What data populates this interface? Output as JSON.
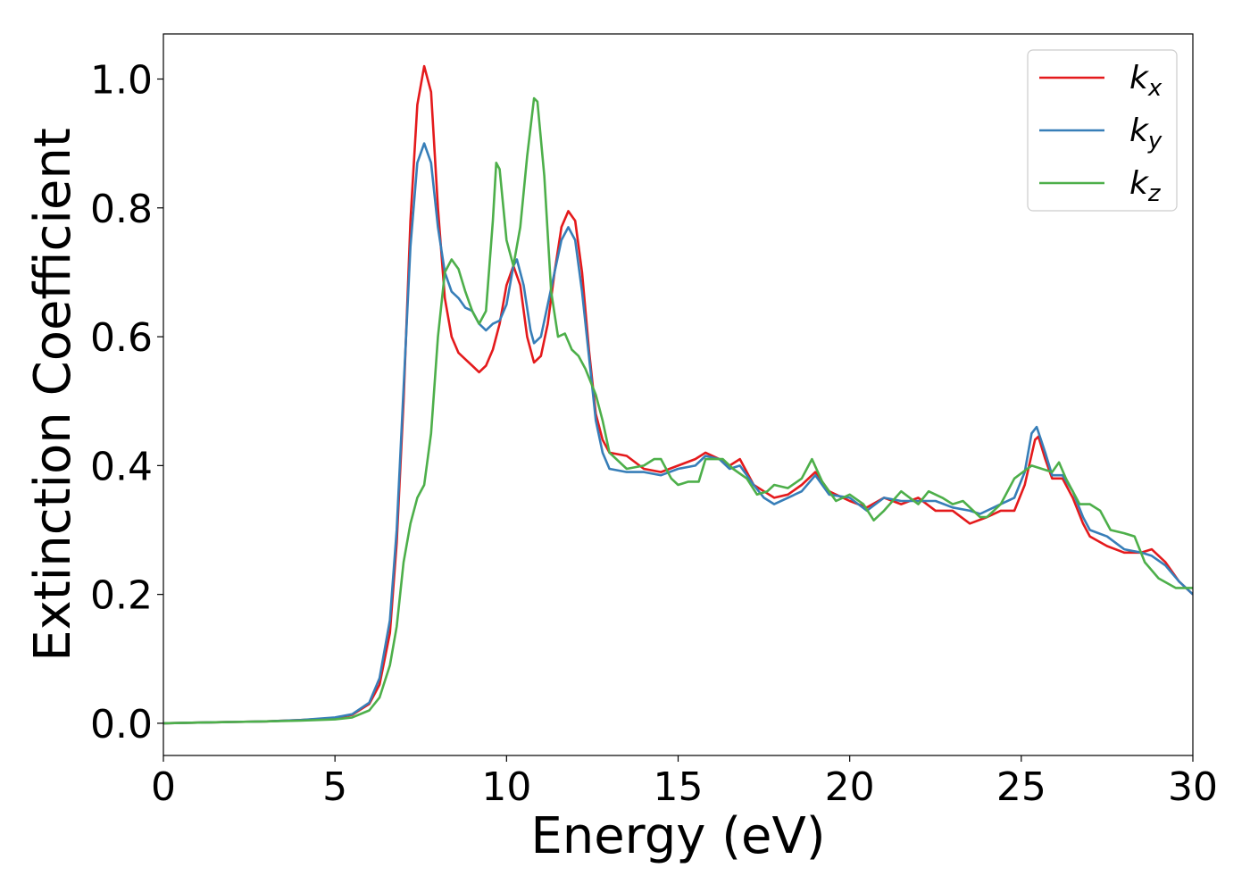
{
  "chart_data": {
    "type": "line",
    "title": "",
    "xlabel": "Energy (eV)",
    "ylabel": "Extinction Coefficient",
    "xlim": [
      0,
      30
    ],
    "ylim": [
      -0.05,
      1.07
    ],
    "xticks": [
      0,
      5,
      10,
      15,
      20,
      25,
      30
    ],
    "xtick_labels": [
      "0",
      "5",
      "10",
      "15",
      "20",
      "25",
      "30"
    ],
    "yticks": [
      0.0,
      0.2,
      0.4,
      0.6,
      0.8,
      1.0
    ],
    "ytick_labels": [
      "0.0",
      "0.2",
      "0.4",
      "0.6",
      "0.8",
      "1.0"
    ],
    "grid": false,
    "legend_position": "top-right",
    "series": [
      {
        "name": "kx",
        "name_base": "k",
        "name_sub": "x",
        "color": "#e41a1c",
        "points": [
          [
            0,
            0.0
          ],
          [
            1,
            0.001
          ],
          [
            2,
            0.002
          ],
          [
            3,
            0.003
          ],
          [
            4,
            0.005
          ],
          [
            5,
            0.008
          ],
          [
            5.5,
            0.013
          ],
          [
            6,
            0.03
          ],
          [
            6.3,
            0.06
          ],
          [
            6.6,
            0.14
          ],
          [
            6.8,
            0.28
          ],
          [
            7.0,
            0.5
          ],
          [
            7.2,
            0.78
          ],
          [
            7.4,
            0.96
          ],
          [
            7.6,
            1.02
          ],
          [
            7.8,
            0.98
          ],
          [
            8.0,
            0.8
          ],
          [
            8.2,
            0.66
          ],
          [
            8.4,
            0.6
          ],
          [
            8.6,
            0.575
          ],
          [
            8.8,
            0.565
          ],
          [
            9.0,
            0.555
          ],
          [
            9.2,
            0.545
          ],
          [
            9.4,
            0.555
          ],
          [
            9.6,
            0.58
          ],
          [
            9.8,
            0.62
          ],
          [
            10.0,
            0.68
          ],
          [
            10.2,
            0.71
          ],
          [
            10.4,
            0.68
          ],
          [
            10.6,
            0.6
          ],
          [
            10.8,
            0.56
          ],
          [
            11.0,
            0.57
          ],
          [
            11.2,
            0.62
          ],
          [
            11.4,
            0.7
          ],
          [
            11.6,
            0.77
          ],
          [
            11.8,
            0.795
          ],
          [
            12.0,
            0.78
          ],
          [
            12.2,
            0.7
          ],
          [
            12.4,
            0.58
          ],
          [
            12.6,
            0.48
          ],
          [
            12.8,
            0.44
          ],
          [
            13.0,
            0.42
          ],
          [
            13.5,
            0.415
          ],
          [
            14.0,
            0.395
          ],
          [
            14.5,
            0.39
          ],
          [
            15.0,
            0.4
          ],
          [
            15.5,
            0.41
          ],
          [
            15.8,
            0.42
          ],
          [
            16.2,
            0.41
          ],
          [
            16.5,
            0.4
          ],
          [
            16.8,
            0.41
          ],
          [
            17.2,
            0.37
          ],
          [
            17.5,
            0.36
          ],
          [
            17.8,
            0.35
          ],
          [
            18.2,
            0.355
          ],
          [
            18.6,
            0.37
          ],
          [
            19.0,
            0.39
          ],
          [
            19.4,
            0.36
          ],
          [
            20.0,
            0.345
          ],
          [
            20.5,
            0.335
          ],
          [
            21.0,
            0.35
          ],
          [
            21.5,
            0.34
          ],
          [
            22.0,
            0.35
          ],
          [
            22.5,
            0.33
          ],
          [
            23.0,
            0.33
          ],
          [
            23.5,
            0.31
          ],
          [
            24.0,
            0.32
          ],
          [
            24.4,
            0.33
          ],
          [
            24.8,
            0.33
          ],
          [
            25.1,
            0.37
          ],
          [
            25.4,
            0.44
          ],
          [
            25.5,
            0.445
          ],
          [
            25.7,
            0.41
          ],
          [
            25.9,
            0.38
          ],
          [
            26.2,
            0.38
          ],
          [
            26.5,
            0.35
          ],
          [
            26.8,
            0.31
          ],
          [
            27.0,
            0.29
          ],
          [
            27.5,
            0.275
          ],
          [
            28.0,
            0.265
          ],
          [
            28.5,
            0.265
          ],
          [
            28.8,
            0.27
          ],
          [
            29.2,
            0.25
          ],
          [
            29.6,
            0.22
          ],
          [
            30.0,
            0.2
          ]
        ]
      },
      {
        "name": "ky",
        "name_base": "k",
        "name_sub": "y",
        "color": "#377eb8",
        "points": [
          [
            0,
            0.0
          ],
          [
            1,
            0.001
          ],
          [
            2,
            0.002
          ],
          [
            3,
            0.003
          ],
          [
            4,
            0.005
          ],
          [
            5,
            0.009
          ],
          [
            5.5,
            0.014
          ],
          [
            6,
            0.032
          ],
          [
            6.3,
            0.07
          ],
          [
            6.6,
            0.16
          ],
          [
            6.8,
            0.3
          ],
          [
            7.0,
            0.52
          ],
          [
            7.2,
            0.74
          ],
          [
            7.4,
            0.87
          ],
          [
            7.6,
            0.9
          ],
          [
            7.8,
            0.87
          ],
          [
            8.0,
            0.77
          ],
          [
            8.2,
            0.7
          ],
          [
            8.4,
            0.67
          ],
          [
            8.6,
            0.66
          ],
          [
            8.8,
            0.645
          ],
          [
            9.0,
            0.64
          ],
          [
            9.2,
            0.62
          ],
          [
            9.4,
            0.61
          ],
          [
            9.6,
            0.62
          ],
          [
            9.8,
            0.625
          ],
          [
            10.0,
            0.65
          ],
          [
            10.2,
            0.71
          ],
          [
            10.3,
            0.72
          ],
          [
            10.5,
            0.68
          ],
          [
            10.7,
            0.61
          ],
          [
            10.8,
            0.59
          ],
          [
            11.0,
            0.6
          ],
          [
            11.2,
            0.65
          ],
          [
            11.4,
            0.7
          ],
          [
            11.6,
            0.75
          ],
          [
            11.8,
            0.77
          ],
          [
            12.0,
            0.75
          ],
          [
            12.2,
            0.67
          ],
          [
            12.4,
            0.57
          ],
          [
            12.6,
            0.47
          ],
          [
            12.8,
            0.42
          ],
          [
            13.0,
            0.395
          ],
          [
            13.5,
            0.39
          ],
          [
            14.0,
            0.39
          ],
          [
            14.5,
            0.385
          ],
          [
            15.0,
            0.395
          ],
          [
            15.5,
            0.4
          ],
          [
            15.8,
            0.415
          ],
          [
            16.2,
            0.41
          ],
          [
            16.5,
            0.395
          ],
          [
            16.8,
            0.4
          ],
          [
            17.2,
            0.37
          ],
          [
            17.5,
            0.35
          ],
          [
            17.8,
            0.34
          ],
          [
            18.2,
            0.35
          ],
          [
            18.6,
            0.36
          ],
          [
            19.0,
            0.385
          ],
          [
            19.4,
            0.355
          ],
          [
            20.0,
            0.35
          ],
          [
            20.5,
            0.33
          ],
          [
            21.0,
            0.35
          ],
          [
            21.5,
            0.345
          ],
          [
            22.0,
            0.345
          ],
          [
            22.5,
            0.345
          ],
          [
            23.0,
            0.335
          ],
          [
            23.5,
            0.33
          ],
          [
            23.8,
            0.325
          ],
          [
            24.4,
            0.34
          ],
          [
            24.8,
            0.35
          ],
          [
            25.1,
            0.39
          ],
          [
            25.3,
            0.45
          ],
          [
            25.45,
            0.46
          ],
          [
            25.7,
            0.42
          ],
          [
            25.9,
            0.385
          ],
          [
            26.2,
            0.385
          ],
          [
            26.5,
            0.36
          ],
          [
            26.8,
            0.32
          ],
          [
            27.0,
            0.3
          ],
          [
            27.5,
            0.29
          ],
          [
            28.0,
            0.27
          ],
          [
            28.5,
            0.265
          ],
          [
            28.8,
            0.26
          ],
          [
            29.2,
            0.245
          ],
          [
            29.6,
            0.22
          ],
          [
            30.0,
            0.2
          ]
        ]
      },
      {
        "name": "kz",
        "name_base": "k",
        "name_sub": "z",
        "color": "#4daf4a",
        "points": [
          [
            0,
            0.0
          ],
          [
            1,
            0.001
          ],
          [
            2,
            0.002
          ],
          [
            3,
            0.003
          ],
          [
            4,
            0.004
          ],
          [
            5,
            0.006
          ],
          [
            5.5,
            0.009
          ],
          [
            6,
            0.02
          ],
          [
            6.3,
            0.04
          ],
          [
            6.6,
            0.09
          ],
          [
            6.8,
            0.15
          ],
          [
            7.0,
            0.25
          ],
          [
            7.2,
            0.31
          ],
          [
            7.4,
            0.35
          ],
          [
            7.6,
            0.37
          ],
          [
            7.8,
            0.45
          ],
          [
            8.0,
            0.6
          ],
          [
            8.2,
            0.7
          ],
          [
            8.4,
            0.72
          ],
          [
            8.6,
            0.705
          ],
          [
            8.8,
            0.67
          ],
          [
            9.0,
            0.64
          ],
          [
            9.2,
            0.62
          ],
          [
            9.4,
            0.64
          ],
          [
            9.6,
            0.78
          ],
          [
            9.7,
            0.87
          ],
          [
            9.8,
            0.86
          ],
          [
            10.0,
            0.75
          ],
          [
            10.2,
            0.71
          ],
          [
            10.4,
            0.77
          ],
          [
            10.6,
            0.88
          ],
          [
            10.8,
            0.97
          ],
          [
            10.9,
            0.965
          ],
          [
            11.1,
            0.85
          ],
          [
            11.3,
            0.67
          ],
          [
            11.5,
            0.6
          ],
          [
            11.7,
            0.605
          ],
          [
            11.9,
            0.58
          ],
          [
            12.1,
            0.57
          ],
          [
            12.3,
            0.55
          ],
          [
            12.6,
            0.51
          ],
          [
            12.8,
            0.47
          ],
          [
            13.0,
            0.42
          ],
          [
            13.5,
            0.395
          ],
          [
            14.0,
            0.4
          ],
          [
            14.3,
            0.41
          ],
          [
            14.5,
            0.41
          ],
          [
            14.8,
            0.38
          ],
          [
            15.0,
            0.37
          ],
          [
            15.3,
            0.375
          ],
          [
            15.6,
            0.375
          ],
          [
            15.8,
            0.41
          ],
          [
            16.0,
            0.41
          ],
          [
            16.3,
            0.41
          ],
          [
            16.6,
            0.395
          ],
          [
            17.0,
            0.38
          ],
          [
            17.3,
            0.355
          ],
          [
            17.6,
            0.36
          ],
          [
            17.8,
            0.37
          ],
          [
            18.2,
            0.365
          ],
          [
            18.6,
            0.38
          ],
          [
            18.9,
            0.41
          ],
          [
            19.2,
            0.375
          ],
          [
            19.6,
            0.345
          ],
          [
            20.0,
            0.355
          ],
          [
            20.4,
            0.34
          ],
          [
            20.7,
            0.315
          ],
          [
            21.0,
            0.33
          ],
          [
            21.5,
            0.36
          ],
          [
            22.0,
            0.34
          ],
          [
            22.3,
            0.36
          ],
          [
            22.7,
            0.35
          ],
          [
            23.0,
            0.34
          ],
          [
            23.3,
            0.345
          ],
          [
            23.8,
            0.32
          ],
          [
            24.0,
            0.32
          ],
          [
            24.4,
            0.34
          ],
          [
            24.8,
            0.38
          ],
          [
            25.3,
            0.4
          ],
          [
            25.6,
            0.395
          ],
          [
            25.9,
            0.39
          ],
          [
            26.1,
            0.405
          ],
          [
            26.3,
            0.38
          ],
          [
            26.7,
            0.34
          ],
          [
            27.0,
            0.34
          ],
          [
            27.3,
            0.33
          ],
          [
            27.6,
            0.3
          ],
          [
            28.0,
            0.295
          ],
          [
            28.3,
            0.29
          ],
          [
            28.6,
            0.25
          ],
          [
            29.0,
            0.225
          ],
          [
            29.5,
            0.21
          ],
          [
            30.0,
            0.21
          ]
        ]
      }
    ]
  }
}
